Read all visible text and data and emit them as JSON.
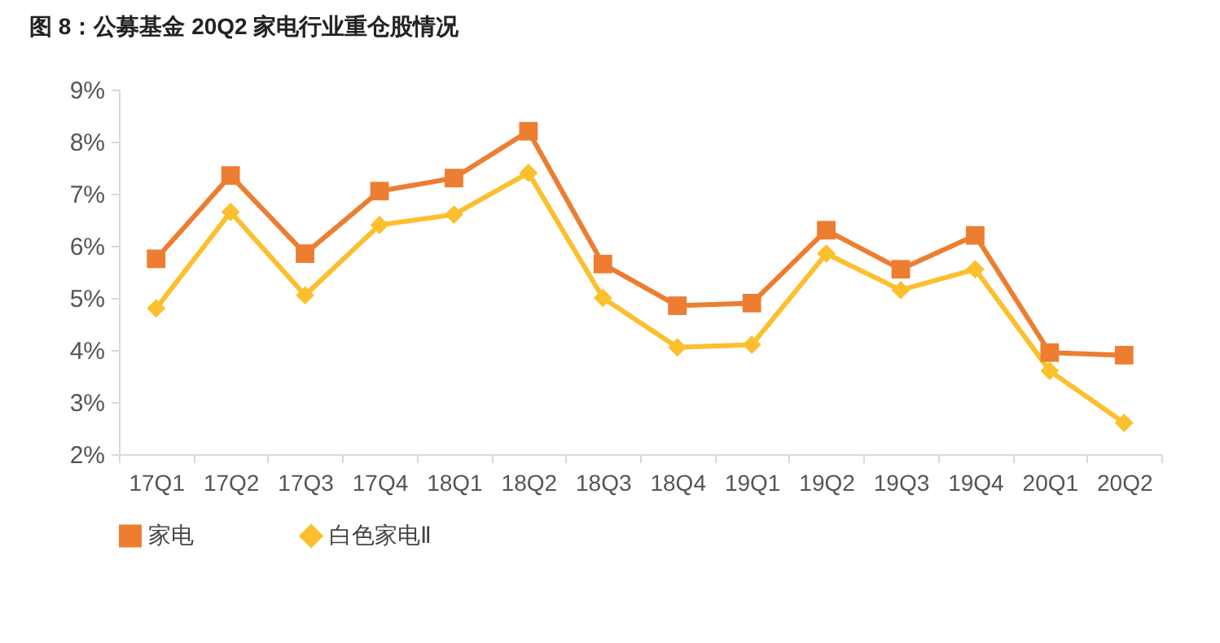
{
  "chart_data": {
    "type": "line",
    "title": "图 8：公募基金 20Q2 家电行业重仓股情况",
    "categories": [
      "17Q1",
      "17Q2",
      "17Q3",
      "17Q4",
      "18Q1",
      "18Q2",
      "18Q3",
      "18Q4",
      "19Q1",
      "19Q2",
      "19Q3",
      "19Q4",
      "20Q1",
      "20Q2"
    ],
    "series": [
      {
        "name": "家电",
        "color": "#ed7d31",
        "marker": "square",
        "values": [
          5.75,
          7.35,
          5.85,
          7.05,
          7.3,
          8.2,
          5.65,
          4.85,
          4.9,
          6.3,
          5.55,
          6.2,
          3.95,
          3.9
        ]
      },
      {
        "name": "白色家电Ⅱ",
        "color": "#fcbf2d",
        "marker": "diamond",
        "values": [
          4.8,
          6.65,
          5.05,
          6.4,
          6.6,
          7.4,
          5.0,
          4.05,
          4.1,
          5.85,
          5.15,
          5.55,
          3.6,
          2.6
        ]
      }
    ],
    "ylim": [
      2,
      9
    ],
    "yticks": [
      {
        "value": 2,
        "label": "2%"
      },
      {
        "value": 3,
        "label": "3%"
      },
      {
        "value": 4,
        "label": "4%"
      },
      {
        "value": 5,
        "label": "5%"
      },
      {
        "value": 6,
        "label": "6%"
      },
      {
        "value": 7,
        "label": "7%"
      },
      {
        "value": 8,
        "label": "8%"
      },
      {
        "value": 9,
        "label": "9%"
      }
    ],
    "legend": "bottom",
    "line_style": "solid"
  }
}
